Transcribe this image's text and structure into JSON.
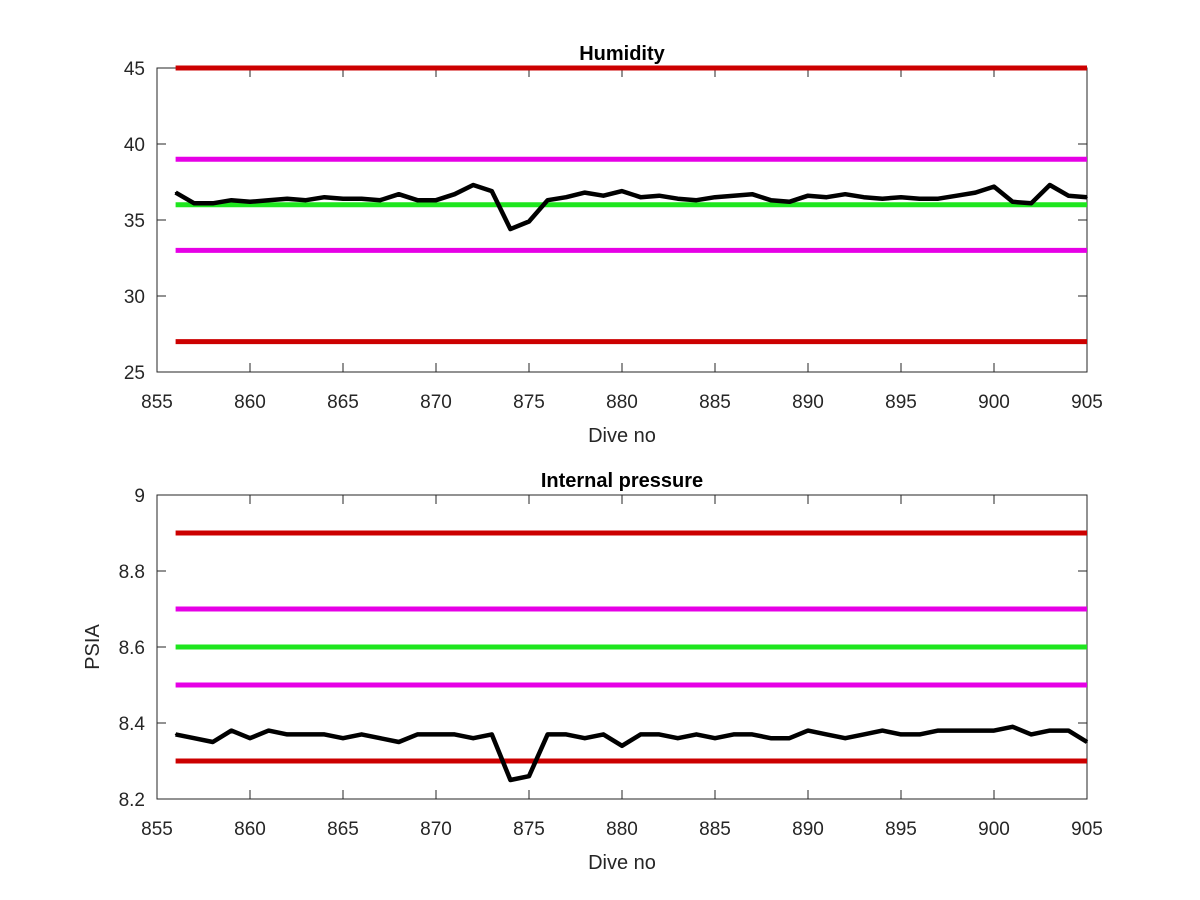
{
  "chart_data": [
    {
      "type": "line",
      "title": "Humidity",
      "xlabel": "Dive no",
      "ylabel": "",
      "xlim": [
        855,
        905
      ],
      "ylim": [
        25,
        45
      ],
      "xticks": [
        855,
        860,
        865,
        870,
        875,
        880,
        885,
        890,
        895,
        900,
        905
      ],
      "yticks": [
        25,
        30,
        35,
        40,
        45
      ],
      "grid": false,
      "legend": "none",
      "reference_lines": [
        {
          "y": 45,
          "color": "#cc0000"
        },
        {
          "y": 39,
          "color": "#e600e6"
        },
        {
          "y": 36,
          "color": "#1ee61e"
        },
        {
          "y": 33,
          "color": "#e600e6"
        },
        {
          "y": 27,
          "color": "#cc0000"
        }
      ],
      "series": [
        {
          "color": "#000000",
          "x": [
            856,
            857,
            858,
            859,
            860,
            861,
            862,
            863,
            864,
            865,
            866,
            867,
            868,
            869,
            870,
            871,
            872,
            873,
            874,
            875,
            876,
            877,
            878,
            879,
            880,
            881,
            882,
            883,
            884,
            885,
            886,
            887,
            888,
            889,
            890,
            891,
            892,
            893,
            894,
            895,
            896,
            897,
            898,
            899,
            900,
            901,
            902,
            903,
            904,
            905
          ],
          "values": [
            36.8,
            36.1,
            36.1,
            36.3,
            36.2,
            36.3,
            36.4,
            36.3,
            36.5,
            36.4,
            36.4,
            36.3,
            36.7,
            36.3,
            36.3,
            36.7,
            37.3,
            36.9,
            34.4,
            34.9,
            36.3,
            36.5,
            36.8,
            36.6,
            36.9,
            36.5,
            36.6,
            36.4,
            36.3,
            36.5,
            36.6,
            36.7,
            36.3,
            36.2,
            36.6,
            36.5,
            36.7,
            36.5,
            36.4,
            36.5,
            36.4,
            36.4,
            36.6,
            36.8,
            37.2,
            36.2,
            36.1,
            37.3,
            36.6,
            36.5
          ]
        }
      ]
    },
    {
      "type": "line",
      "title": "Internal pressure",
      "xlabel": "Dive no",
      "ylabel": "PSIA",
      "xlim": [
        855,
        905
      ],
      "ylim": [
        8.2,
        9
      ],
      "xticks": [
        855,
        860,
        865,
        870,
        875,
        880,
        885,
        890,
        895,
        900,
        905
      ],
      "yticks": [
        8.2,
        8.4,
        8.6,
        8.8,
        9
      ],
      "ytick_labels": [
        "8.2",
        "8.4",
        "8.6",
        "8.8",
        "9"
      ],
      "grid": false,
      "legend": "none",
      "reference_lines": [
        {
          "y": 8.9,
          "color": "#cc0000"
        },
        {
          "y": 8.7,
          "color": "#e600e6"
        },
        {
          "y": 8.6,
          "color": "#1ee61e"
        },
        {
          "y": 8.5,
          "color": "#e600e6"
        },
        {
          "y": 8.3,
          "color": "#cc0000"
        }
      ],
      "series": [
        {
          "color": "#000000",
          "x": [
            856,
            857,
            858,
            859,
            860,
            861,
            862,
            863,
            864,
            865,
            866,
            867,
            868,
            869,
            870,
            871,
            872,
            873,
            874,
            875,
            876,
            877,
            878,
            879,
            880,
            881,
            882,
            883,
            884,
            885,
            886,
            887,
            888,
            889,
            890,
            891,
            892,
            893,
            894,
            895,
            896,
            897,
            898,
            899,
            900,
            901,
            902,
            903,
            904,
            905
          ],
          "values": [
            8.37,
            8.36,
            8.35,
            8.38,
            8.36,
            8.38,
            8.37,
            8.37,
            8.37,
            8.36,
            8.37,
            8.36,
            8.35,
            8.37,
            8.37,
            8.37,
            8.36,
            8.37,
            8.25,
            8.26,
            8.37,
            8.37,
            8.36,
            8.37,
            8.34,
            8.37,
            8.37,
            8.36,
            8.37,
            8.36,
            8.37,
            8.37,
            8.36,
            8.36,
            8.38,
            8.37,
            8.36,
            8.37,
            8.38,
            8.37,
            8.37,
            8.38,
            8.38,
            8.38,
            8.38,
            8.39,
            8.37,
            8.38,
            8.38,
            8.35
          ]
        }
      ]
    }
  ]
}
